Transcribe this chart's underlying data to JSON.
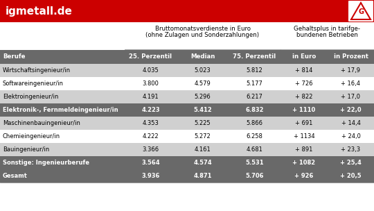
{
  "title_text": "igmetall.de",
  "header_bg": "#cc0000",
  "header_text_color": "#ffffff",
  "col_header1_line1": "Bruttomonatsverdienste in Euro",
  "col_header1_line2": "(ohne Zulagen und Sonderzahlungen)",
  "col_header2_line1": "Gehaltsplus in tarifge-",
  "col_header2_line2": "bundenen Betrieben",
  "sub_headers": [
    "Berufe",
    "25. Perzentil",
    "Median",
    "75. Perzentil",
    "in Euro",
    "in Prozent"
  ],
  "rows": [
    [
      "Wirtschaftsingenieur/in",
      "4.035",
      "5.023",
      "5.812",
      "+ 814",
      "+ 17,9"
    ],
    [
      "Softwareingenieur/in",
      "3.800",
      "4.579",
      "5.177",
      "+ 726",
      "+ 16,4"
    ],
    [
      "Elektroingenieur/in",
      "4.191",
      "5.296",
      "6.217",
      "+ 822",
      "+ 17,0"
    ],
    [
      "Elektronik-, Fernmeldeingenieur/in",
      "4.223",
      "5.412",
      "6.832",
      "+ 1110",
      "+ 22,0"
    ],
    [
      "Maschinenbauingenieur/in",
      "4.353",
      "5.225",
      "5.866",
      "+ 691",
      "+ 14,4"
    ],
    [
      "Chemieingenieur/in",
      "4.222",
      "5.272",
      "6.258",
      "+ 1134",
      "+ 24,0"
    ],
    [
      "Bauingenieur/in",
      "3.366",
      "4.161",
      "4.681",
      "+ 891",
      "+ 23,3"
    ],
    [
      "Sonstige: Ingenieurberufe",
      "3.564",
      "4.574",
      "5.531",
      "+ 1082",
      "+ 25,4"
    ],
    [
      "Gesamt",
      "3.936",
      "4.871",
      "5.706",
      "+ 926",
      "+ 20,5"
    ]
  ],
  "row_colors": [
    "#d0d0d0",
    "#ffffff",
    "#d0d0d0",
    "#696969",
    "#d0d0d0",
    "#ffffff",
    "#d0d0d0",
    "#696969",
    "#696969"
  ],
  "row_text_colors": [
    "#000000",
    "#000000",
    "#000000",
    "#ffffff",
    "#000000",
    "#000000",
    "#000000",
    "#ffffff",
    "#ffffff"
  ],
  "row_bold": [
    false,
    false,
    false,
    true,
    false,
    false,
    false,
    true,
    true
  ],
  "subheader_bg": "#696969",
  "subheader_text_color": "#ffffff",
  "fig_width": 5.4,
  "fig_height": 3.04,
  "dpi": 100
}
